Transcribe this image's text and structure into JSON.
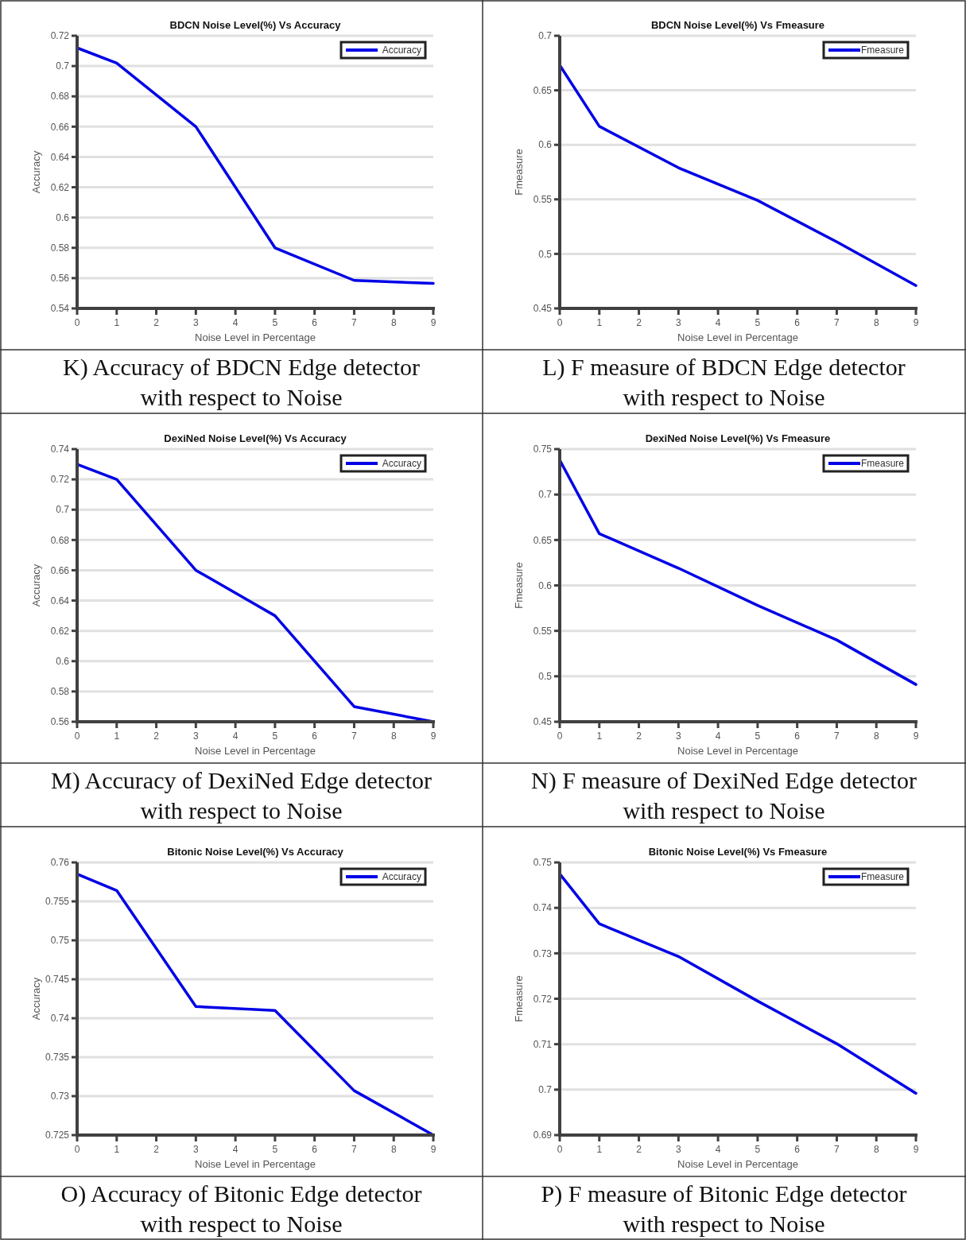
{
  "chart_data": [
    {
      "type": "line",
      "title": "BDCN Noise Level(%) Vs Accuracy",
      "xlabel": "Noise Level in Percentage",
      "ylabel": "Accuracy",
      "x": [
        0,
        1,
        3,
        5,
        7,
        9
      ],
      "series": [
        {
          "name": "Accuracy",
          "color": "#0000e6",
          "values": [
            0.712,
            0.702,
            0.66,
            0.58,
            0.5585,
            0.5565
          ]
        }
      ],
      "xlim": [
        0,
        9
      ],
      "xticks": [
        0,
        1,
        2,
        3,
        4,
        5,
        6,
        7,
        8,
        9
      ],
      "ylim": [
        0.54,
        0.72
      ],
      "yticks": [
        0.54,
        0.56,
        0.58,
        0.6,
        0.62,
        0.64,
        0.66,
        0.68,
        0.7,
        0.72
      ],
      "grid": "y",
      "legend": "top right",
      "annotations": [
        "K) Accuracy of BDCN Edge detector with respect to Noise"
      ]
    },
    {
      "type": "line",
      "title": "BDCN Noise Level(%) Vs Fmeasure",
      "xlabel": "Noise Level in Percentage",
      "ylabel": "Fmeasure",
      "x": [
        0,
        1,
        3,
        5,
        7,
        9
      ],
      "series": [
        {
          "name": "Fmeasure",
          "color": "#0000e6",
          "values": [
            0.673,
            0.617,
            0.579,
            0.549,
            0.511,
            0.471
          ]
        }
      ],
      "xlim": [
        0,
        9
      ],
      "xticks": [
        0,
        1,
        2,
        3,
        4,
        5,
        6,
        7,
        8,
        9
      ],
      "ylim": [
        0.45,
        0.7
      ],
      "yticks": [
        0.45,
        0.5,
        0.55,
        0.6,
        0.65,
        0.7
      ],
      "grid": "y",
      "legend": "top right",
      "annotations": [
        "L) F measure of BDCN Edge detector with respect to Noise"
      ]
    },
    {
      "type": "line",
      "title": "DexiNed Noise Level(%) Vs Accuracy",
      "xlabel": "Noise Level in Percentage",
      "ylabel": "Accuracy",
      "x": [
        0,
        1,
        3,
        5,
        7,
        9
      ],
      "series": [
        {
          "name": "Accuracy",
          "color": "#0000e6",
          "values": [
            0.73,
            0.72,
            0.66,
            0.63,
            0.57,
            0.56
          ]
        }
      ],
      "xlim": [
        0,
        9
      ],
      "xticks": [
        0,
        1,
        2,
        3,
        4,
        5,
        6,
        7,
        8,
        9
      ],
      "ylim": [
        0.56,
        0.74
      ],
      "yticks": [
        0.56,
        0.58,
        0.6,
        0.62,
        0.64,
        0.66,
        0.68,
        0.7,
        0.72,
        0.74
      ],
      "grid": "y",
      "legend": "top right",
      "annotations": [
        "M) Accuracy of DexiNed Edge detector with respect to Noise"
      ]
    },
    {
      "type": "line",
      "title": "DexiNed Noise Level(%) Vs Fmeasure",
      "xlabel": "Noise Level in Percentage",
      "ylabel": "Fmeasure",
      "x": [
        0,
        1,
        3,
        5,
        7,
        9
      ],
      "series": [
        {
          "name": "Fmeasure",
          "color": "#0000e6",
          "values": [
            0.738,
            0.657,
            0.619,
            0.578,
            0.54,
            0.491
          ]
        }
      ],
      "xlim": [
        0,
        9
      ],
      "xticks": [
        0,
        1,
        2,
        3,
        4,
        5,
        6,
        7,
        8,
        9
      ],
      "ylim": [
        0.45,
        0.75
      ],
      "yticks": [
        0.45,
        0.5,
        0.55,
        0.6,
        0.65,
        0.7,
        0.75
      ],
      "grid": "y",
      "legend": "top right",
      "annotations": [
        "N) F measure of DexiNed Edge detector with respect to Noise"
      ]
    },
    {
      "type": "line",
      "title": "Bitonic Noise Level(%) Vs Accuracy",
      "xlabel": "Noise Level in Percentage",
      "ylabel": "Accuracy",
      "x": [
        0,
        1,
        3,
        5,
        7,
        9
      ],
      "series": [
        {
          "name": "Accuracy",
          "color": "#0000e6",
          "values": [
            0.7585,
            0.7564,
            0.7415,
            0.741,
            0.7307,
            0.725
          ]
        }
      ],
      "xlim": [
        0,
        9
      ],
      "xticks": [
        0,
        1,
        2,
        3,
        4,
        5,
        6,
        7,
        8,
        9
      ],
      "ylim": [
        0.725,
        0.76
      ],
      "yticks": [
        0.725,
        0.73,
        0.735,
        0.74,
        0.745,
        0.75,
        0.755,
        0.76
      ],
      "grid": "y",
      "legend": "top right",
      "annotations": [
        "O) Accuracy of Bitonic Edge detector with respect to Noise"
      ]
    },
    {
      "type": "line",
      "title": "Bitonic Noise Level(%) Vs Fmeasure",
      "xlabel": "Noise Level in Percentage",
      "ylabel": "Fmeasure",
      "x": [
        0,
        1,
        3,
        5,
        7,
        9
      ],
      "series": [
        {
          "name": "Fmeasure",
          "color": "#0000e6",
          "values": [
            0.7475,
            0.7365,
            0.7293,
            0.7195,
            0.7101,
            0.6992
          ]
        }
      ],
      "xlim": [
        0,
        9
      ],
      "xticks": [
        0,
        1,
        2,
        3,
        4,
        5,
        6,
        7,
        8,
        9
      ],
      "ylim": [
        0.69,
        0.75
      ],
      "yticks": [
        0.69,
        0.7,
        0.71,
        0.72,
        0.73,
        0.74,
        0.75
      ],
      "grid": "y",
      "legend": "top right",
      "annotations": [
        "P) F measure of Bitonic Edge detector with respect to Noise"
      ]
    }
  ]
}
